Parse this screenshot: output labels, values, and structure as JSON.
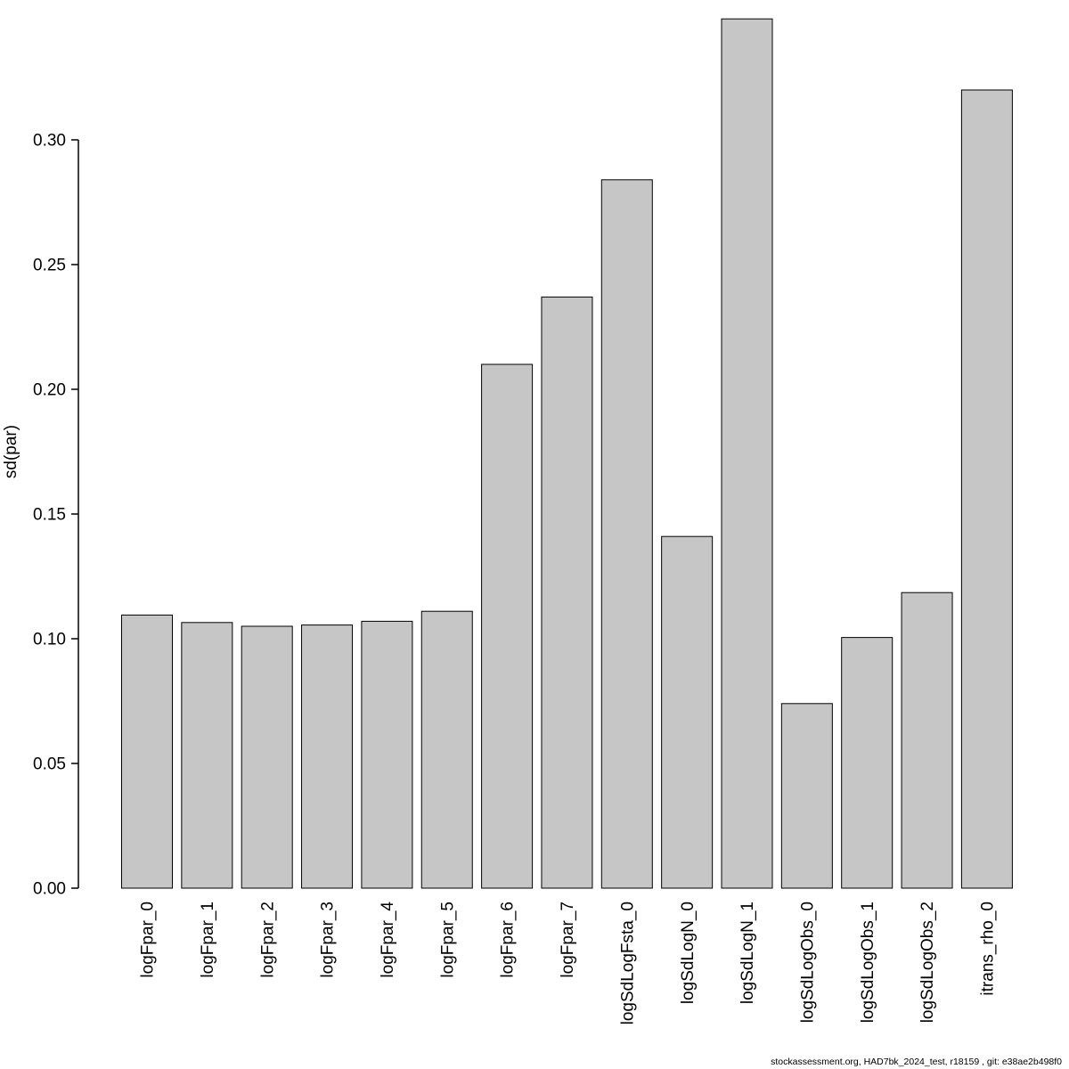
{
  "page": {
    "background": "#ffffff"
  },
  "footer": {
    "caption": "stockassessment.org, HAD7bk_2024_test, r18159 , git: e38ae2b498f0"
  },
  "y_axis": {
    "label": "sd(par)",
    "ticks": [
      {
        "label": "0.00",
        "value": 0.0
      },
      {
        "label": "0.05",
        "value": 0.05
      },
      {
        "label": "0.10",
        "value": 0.1
      },
      {
        "label": "0.15",
        "value": 0.15
      },
      {
        "label": "0.20",
        "value": 0.2
      },
      {
        "label": "0.25",
        "value": 0.25
      },
      {
        "label": "0.30",
        "value": 0.3
      }
    ]
  },
  "chart_data": {
    "type": "bar",
    "title": "",
    "xlabel": "",
    "ylabel": "sd(par)",
    "categories": [
      "logFpar_0",
      "logFpar_1",
      "logFpar_2",
      "logFpar_3",
      "logFpar_4",
      "logFpar_5",
      "logFpar_6",
      "logFpar_7",
      "logSdLogFsta_0",
      "logSdLogN_0",
      "logSdLogN_1",
      "logSdLogObs_0",
      "logSdLogObs_1",
      "logSdLogObs_2",
      "itrans_rho_0"
    ],
    "values": [
      0.1095,
      0.1065,
      0.105,
      0.1055,
      0.107,
      0.111,
      0.21,
      0.237,
      0.284,
      0.141,
      0.3485,
      0.074,
      0.1005,
      0.1185,
      0.32
    ],
    "ylim": [
      0,
      0.35
    ],
    "grid": false,
    "legend": "none",
    "bar_color": "#c6c6c6",
    "bar_border": "#000000"
  }
}
